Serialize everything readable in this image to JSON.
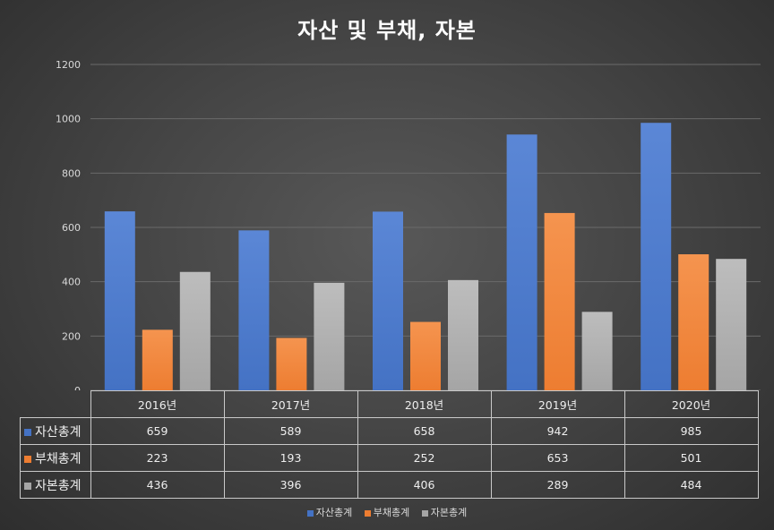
{
  "chart_data": {
    "type": "bar",
    "title": "자산 및 부채, 자본",
    "categories": [
      "2016년",
      "2017년",
      "2018년",
      "2019년",
      "2020년"
    ],
    "series": [
      {
        "name": "자산총계",
        "values": [
          659,
          589,
          658,
          942,
          985
        ],
        "color": "#4472c4",
        "color_light": "#5b87d6"
      },
      {
        "name": "부채총계",
        "values": [
          223,
          193,
          252,
          653,
          501
        ],
        "color": "#ed7d31",
        "color_light": "#f5944f"
      },
      {
        "name": "자본총계",
        "values": [
          436,
          396,
          406,
          289,
          484
        ],
        "color": "#a5a5a5",
        "color_light": "#bdbdbd"
      }
    ],
    "ylim": [
      0,
      1200
    ],
    "yticks": [
      "0",
      "200",
      "400",
      "600",
      "800",
      "1000",
      "1200"
    ],
    "grid": true,
    "legend": "bottom",
    "data_table": true,
    "xlabel": "",
    "ylabel": ""
  },
  "table_values": [
    [
      "659",
      "589",
      "658",
      "942",
      "985"
    ],
    [
      "223",
      "193",
      "252",
      "653",
      "501"
    ],
    [
      "436",
      "396",
      "406",
      "289",
      "484"
    ]
  ]
}
